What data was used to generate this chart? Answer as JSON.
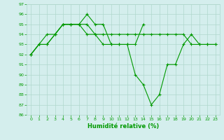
{
  "xlabel": "Humidité relative (%)",
  "xlim": [
    -0.5,
    23.5
  ],
  "ylim": [
    86,
    97
  ],
  "yticks": [
    86,
    87,
    88,
    89,
    90,
    91,
    92,
    93,
    94,
    95,
    96,
    97
  ],
  "xticks": [
    0,
    1,
    2,
    3,
    4,
    5,
    6,
    7,
    8,
    9,
    10,
    11,
    12,
    13,
    14,
    15,
    16,
    17,
    18,
    19,
    20,
    21,
    22,
    23
  ],
  "bg_color": "#d4eeed",
  "grid_color": "#b0d8cc",
  "line_color": "#009900",
  "line1": [
    92,
    93,
    93,
    94,
    95,
    95,
    95,
    96,
    95,
    95,
    93,
    93,
    93,
    93,
    95,
    null,
    null,
    null,
    null,
    null,
    null,
    null,
    null,
    null
  ],
  "line2": [
    92,
    93,
    94,
    94,
    95,
    95,
    95,
    95,
    94,
    94,
    94,
    94,
    94,
    94,
    94,
    94,
    94,
    94,
    94,
    94,
    93,
    93,
    93,
    93
  ],
  "line3": [
    92,
    93,
    93,
    94,
    95,
    95,
    95,
    94,
    94,
    93,
    93,
    93,
    93,
    90,
    89,
    87,
    88,
    91,
    91,
    93,
    94,
    93,
    93,
    93
  ]
}
